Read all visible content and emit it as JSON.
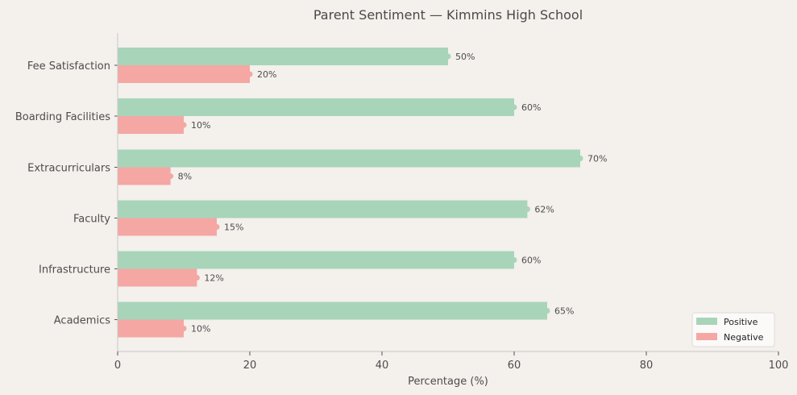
{
  "chart_data": {
    "type": "bar",
    "orientation": "horizontal",
    "title": "Parent Sentiment — Kimmins High School",
    "xlabel": "Percentage (%)",
    "ylabel": "",
    "xlim": [
      0,
      100
    ],
    "xticks": [
      0,
      20,
      40,
      60,
      80,
      100
    ],
    "grid": false,
    "legend_position": "lower right",
    "categories": [
      "Fee Satisfaction",
      "Boarding Facilities",
      "Extracurriculars",
      "Faculty",
      "Infrastructure",
      "Academics"
    ],
    "series": [
      {
        "name": "Positive",
        "color": "#a8d5b9",
        "values": [
          50,
          60,
          70,
          62,
          60,
          65
        ]
      },
      {
        "name": "Negative",
        "color": "#f5a7a3",
        "values": [
          20,
          10,
          8,
          15,
          12,
          10
        ]
      }
    ],
    "value_label_suffix": "%"
  },
  "colors": {
    "background": "#f4f0ec",
    "axis": "#c8c8c8",
    "text": "#4d4d4d"
  }
}
